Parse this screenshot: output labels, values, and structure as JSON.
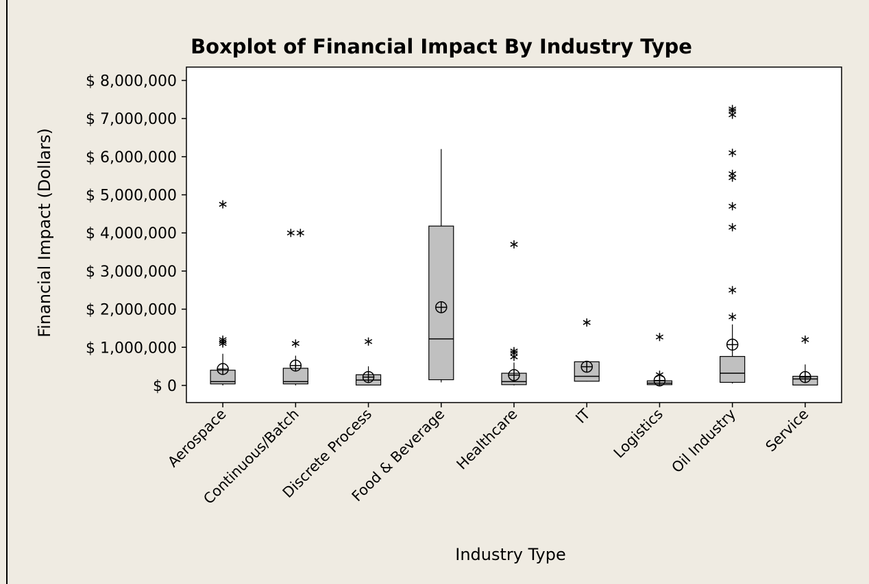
{
  "chart_data": {
    "type": "box",
    "title": "Boxplot of Financial Impact By Industry Type",
    "xlabel": "Industry Type",
    "ylabel": "Financial Impact (Dollars)",
    "categories": [
      "Aerospace",
      "Continuous/Batch",
      "Discrete Process",
      "Food & Beverage",
      "Healthcare",
      "IT",
      "Logistics",
      "Oil Industry",
      "Service"
    ],
    "whisker_low": [
      0,
      0,
      0,
      80000,
      0,
      100000,
      0,
      50000,
      0
    ],
    "q1": [
      40000,
      40000,
      10000,
      150000,
      20000,
      110000,
      20000,
      80000,
      10000
    ],
    "median": [
      100000,
      100000,
      140000,
      1220000,
      100000,
      240000,
      60000,
      320000,
      170000
    ],
    "q3": [
      400000,
      450000,
      280000,
      4180000,
      320000,
      620000,
      120000,
      760000,
      240000
    ],
    "whisker_high": [
      830000,
      780000,
      500000,
      6200000,
      600000,
      620000,
      200000,
      1600000,
      550000
    ],
    "mean": [
      430000,
      520000,
      220000,
      2050000,
      270000,
      490000,
      130000,
      1070000,
      220000
    ],
    "outliers": [
      [
        1100000,
        1150000,
        1200000,
        4750000
      ],
      [
        1100000,
        4000000,
        4000000
      ],
      [
        1150000
      ],
      [],
      [
        750000,
        850000,
        900000,
        3700000
      ],
      [
        1650000
      ],
      [
        280000,
        1270000
      ],
      [
        1800000,
        2500000,
        4150000,
        4700000,
        5450000,
        5550000,
        6100000,
        7100000,
        7200000,
        7250000
      ],
      [
        1200000
      ]
    ],
    "color": "#c0c0c0",
    "ylim": [
      -450000,
      8350000
    ],
    "yticks": [
      {
        "value": 0,
        "label": "$ 0"
      },
      {
        "value": 1000000,
        "label": "$ 1,000,000"
      },
      {
        "value": 2000000,
        "label": "$ 2,000,000"
      },
      {
        "value": 3000000,
        "label": "$ 3,000,000"
      },
      {
        "value": 4000000,
        "label": "$ 4,000,000"
      },
      {
        "value": 5000000,
        "label": "$ 5,000,000"
      },
      {
        "value": 6000000,
        "label": "$ 6,000,000"
      },
      {
        "value": 7000000,
        "label": "$ 7,000,000"
      },
      {
        "value": 8000000,
        "label": "$ 8,000,000"
      }
    ]
  }
}
